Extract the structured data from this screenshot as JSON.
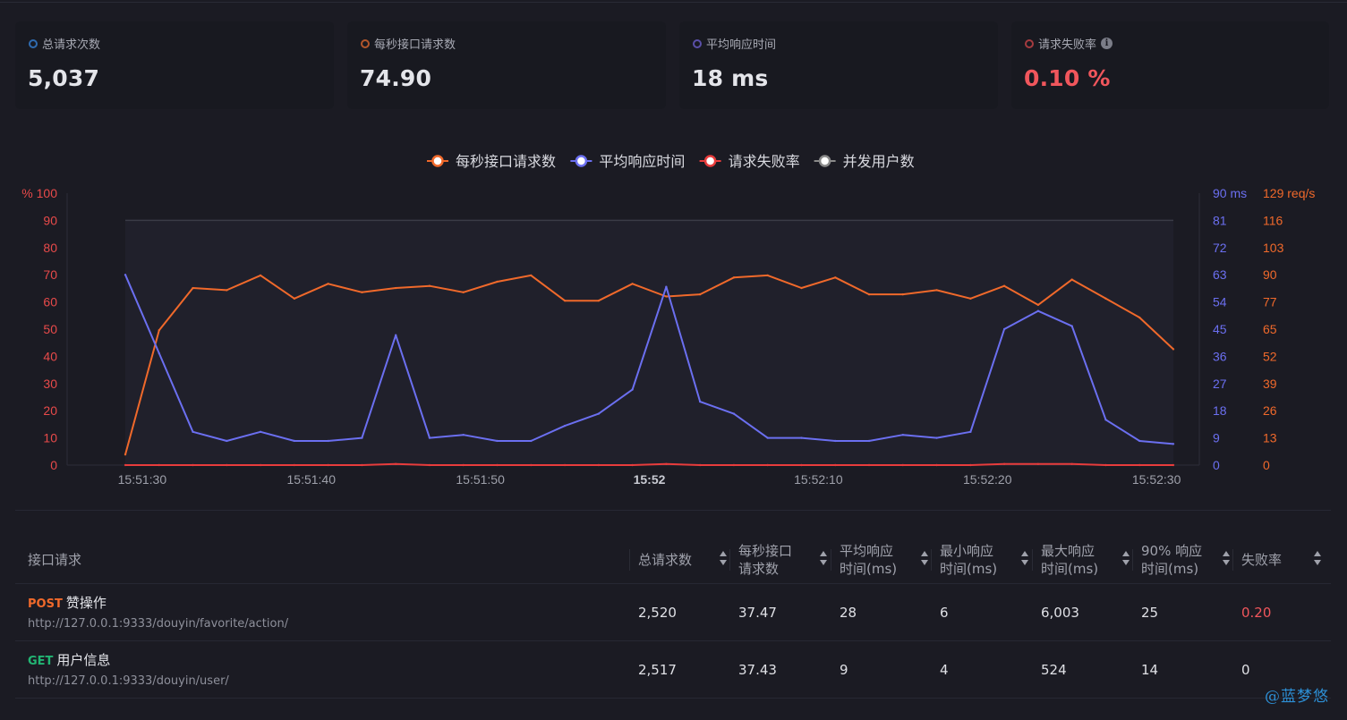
{
  "stats": [
    {
      "label": "总请求次数",
      "value": "5,037",
      "color": "#2f6bb0",
      "value_color": "normal"
    },
    {
      "label": "每秒接口请求数",
      "value": "74.90",
      "color": "#b2562b",
      "value_color": "normal"
    },
    {
      "label": "平均响应时间",
      "value": "18 ms",
      "color": "#5a4fa8",
      "value_color": "normal"
    },
    {
      "label": "请求失败率",
      "value": "0.10 %",
      "color": "#a53b3f",
      "value_color": "red",
      "info_icon": "info-circle-icon"
    }
  ],
  "chart_data": {
    "type": "line",
    "legend": [
      {
        "name": "每秒接口请求数",
        "color": "#f0692b"
      },
      {
        "name": "平均响应时间",
        "color": "#6b6ff0"
      },
      {
        "name": "请求失败率",
        "color": "#e83c3c"
      },
      {
        "name": "并发用户数",
        "color": "#8a8a8a"
      }
    ],
    "legend_position": "top-center",
    "x": [
      "15:51:29",
      "15:51:31",
      "15:51:33",
      "15:51:35",
      "15:51:37",
      "15:51:39",
      "15:51:41",
      "15:51:43",
      "15:51:45",
      "15:51:47",
      "15:51:49",
      "15:51:51",
      "15:51:53",
      "15:51:55",
      "15:51:57",
      "15:51:59",
      "15:52:01",
      "15:52:03",
      "15:52:05",
      "15:52:07",
      "15:52:09",
      "15:52:11",
      "15:52:13",
      "15:52:15",
      "15:52:17",
      "15:52:19",
      "15:52:21",
      "15:52:23",
      "15:52:25",
      "15:52:27",
      "15:52:29",
      "15:52:31"
    ],
    "x_ticks": [
      "15:51:30",
      "15:51:40",
      "15:51:50",
      "15:52",
      "15:52:10",
      "15:52:20",
      "15:52:30"
    ],
    "x_tick_bold": "15:52",
    "axes": {
      "left": {
        "ticks": [
          "0",
          "10",
          "20",
          "30",
          "40",
          "50",
          "60",
          "70",
          "80",
          "90",
          "% 100"
        ],
        "range": [
          0,
          100
        ],
        "color": "#e84a4a"
      },
      "right1": {
        "ticks": [
          "0",
          "9",
          "18",
          "27",
          "36",
          "45",
          "54",
          "63",
          "72",
          "81",
          "90 ms"
        ],
        "range": [
          0,
          90
        ],
        "color": "#6b6ff0"
      },
      "right2": {
        "ticks": [
          "0",
          "13",
          "26",
          "39",
          "52",
          "65",
          "77",
          "90",
          "103",
          "116",
          "129 req/s"
        ],
        "range": [
          0,
          129
        ],
        "color": "#f0692b"
      }
    },
    "series": [
      {
        "name": "每秒接口请求数",
        "axis": "right2",
        "color": "#f0692b",
        "values": [
          5,
          64,
          84,
          83,
          90,
          79,
          86,
          82,
          84,
          85,
          82,
          87,
          90,
          78,
          78,
          86,
          80,
          81,
          89,
          90,
          84,
          89,
          81,
          81,
          83,
          79,
          85,
          76,
          88,
          79,
          70,
          55
        ]
      },
      {
        "name": "平均响应时间",
        "axis": "right1",
        "color": "#6b6ff0",
        "values": [
          63,
          37,
          11,
          8,
          11,
          8,
          8,
          9,
          43,
          9,
          10,
          8,
          8,
          13,
          17,
          25,
          59,
          21,
          17,
          9,
          9,
          8,
          8,
          10,
          9,
          11,
          45,
          51,
          46,
          15,
          8,
          7
        ]
      },
      {
        "name": "请求失败率",
        "axis": "left",
        "color": "#e83c3c",
        "values": [
          0,
          0,
          0,
          0,
          0,
          0,
          0,
          0,
          0.4,
          0,
          0,
          0,
          0,
          0,
          0,
          0,
          0.4,
          0,
          0,
          0,
          0,
          0,
          0,
          0,
          0,
          0,
          0.4,
          0.4,
          0.4,
          0,
          0,
          0
        ]
      }
    ]
  },
  "table": {
    "headers": [
      {
        "label": "接口请求",
        "sortable": false
      },
      {
        "label": "总请求数",
        "sortable": true
      },
      {
        "label": "每秒接口请求数",
        "sortable": true
      },
      {
        "label": "平均响应时间(ms)",
        "sortable": true
      },
      {
        "label": "最小响应时间(ms)",
        "sortable": true
      },
      {
        "label": "最大响应时间(ms)",
        "sortable": true
      },
      {
        "label": "90% 响应时间(ms)",
        "sortable": true
      },
      {
        "label": "失败率",
        "sortable": true
      }
    ],
    "header_lines": [
      [
        "接口请求"
      ],
      [
        "总请求数"
      ],
      [
        "每秒接口",
        "请求数"
      ],
      [
        "平均响应",
        "时间(ms)"
      ],
      [
        "最小响应",
        "时间(ms)"
      ],
      [
        "最大响应",
        "时间(ms)"
      ],
      [
        "90% 响应",
        "时间(ms)"
      ],
      [
        "失败率"
      ]
    ],
    "rows": [
      {
        "method": "POST",
        "name": "赞操作",
        "url": "http://127.0.0.1:9333/douyin/favorite/action/",
        "total": "2,520",
        "rps": "37.47",
        "avg": "28",
        "min": "6",
        "max": "6,003",
        "p90": "25",
        "fail": "0.20",
        "fail_red": true
      },
      {
        "method": "GET",
        "name": "用户信息",
        "url": "http://127.0.0.1:9333/douyin/user/",
        "total": "2,517",
        "rps": "37.43",
        "avg": "9",
        "min": "4",
        "max": "524",
        "p90": "14",
        "fail": "0",
        "fail_red": false
      }
    ]
  },
  "watermark": "@蓝梦悠"
}
